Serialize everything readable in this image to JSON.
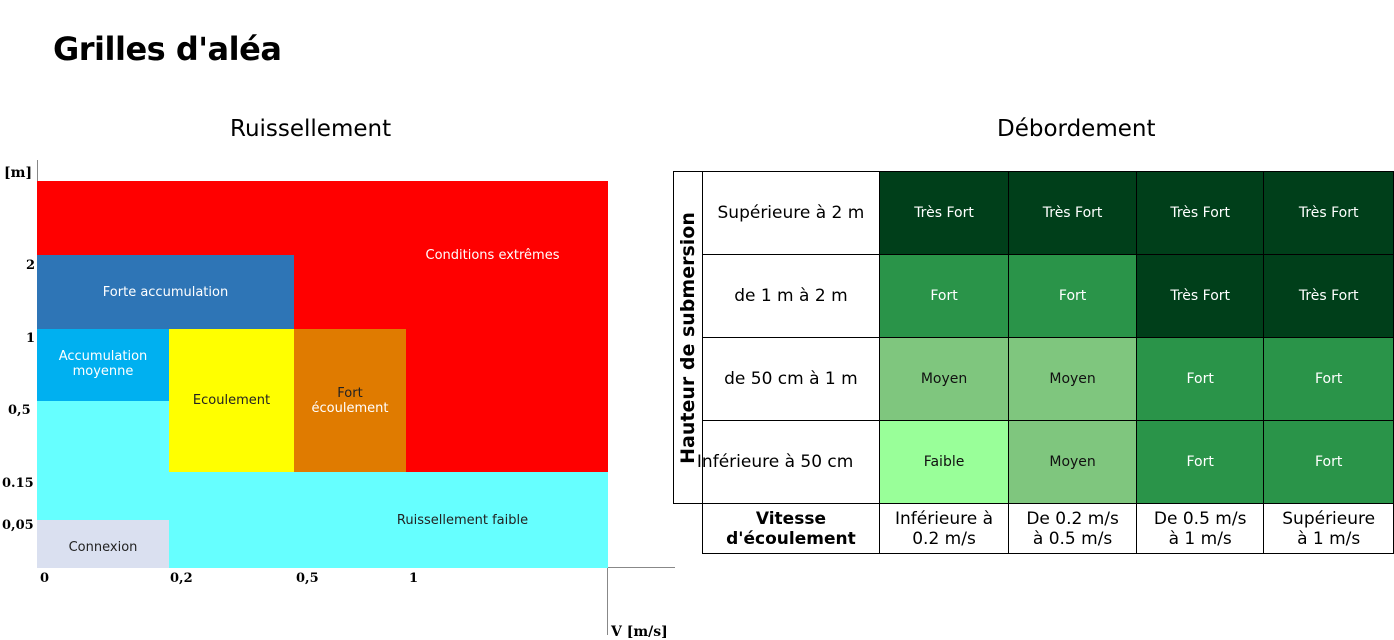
{
  "page": {
    "title": "Grilles d'aléa"
  },
  "ruissellement": {
    "title": "Ruissellement",
    "y_axis_label": "[m]",
    "x_axis_label": "V [m/s]",
    "y_ticks": [
      "2",
      "1",
      "0,5",
      "0.15",
      "0,05"
    ],
    "x_ticks": [
      "0",
      "0,2",
      "0,5",
      "1"
    ],
    "zones": {
      "conditions_extremes": {
        "label": "Conditions extrêmes",
        "color": "#ff0000"
      },
      "forte_accumulation": {
        "label": "Forte accumulation",
        "color": "#2e75b6"
      },
      "accumulation_moyenne": {
        "line1": "Accumulation",
        "line2": "moyenne",
        "color": "#00b0f0"
      },
      "ecoulement": {
        "label": "Ecoulement",
        "color": "#ffff00"
      },
      "fort_ecoulement": {
        "line1": "Fort",
        "line2": "écoulement",
        "color": "#e07b00"
      },
      "ruissellement_faible": {
        "label": "Ruissellement faible",
        "color": "#66ffff"
      },
      "connexion": {
        "label": "Connexion",
        "color": "#dae0f0"
      }
    }
  },
  "debordement": {
    "title": "Débordement",
    "row_axis_label": "Hauteur de submersion",
    "corner_line1": "Vitesse",
    "corner_line2": "d'écoulement",
    "columns": [
      {
        "line1": "Inférieure à",
        "line2": "0.2 m/s"
      },
      {
        "line1": "De 0.2 m/s",
        "line2": "à 0.5 m/s"
      },
      {
        "line1": "De 0.5 m/s",
        "line2": "à 1 m/s"
      },
      {
        "line1": "Supérieure",
        "line2": "à 1 m/s"
      }
    ],
    "rows": [
      {
        "label": "Supérieure à 2 m",
        "cells": [
          "Très Fort",
          "Très Fort",
          "Très Fort",
          "Très Fort"
        ]
      },
      {
        "label": "de 1 m à 2 m",
        "cells": [
          "Fort",
          "Fort",
          "Très Fort",
          "Très Fort"
        ]
      },
      {
        "label": "de 50 cm à 1 m",
        "cells": [
          "Moyen",
          "Moyen",
          "Fort",
          "Fort"
        ]
      },
      {
        "label": "Inférieure à 50 cm",
        "cells": [
          "Faible",
          "Moyen",
          "Fort",
          "Fort"
        ]
      }
    ],
    "level_colors": {
      "Très Fort": "#003f1a",
      "Fort": "#2a9449",
      "Moyen": "#7fc67e",
      "Faible": "#99ff99"
    },
    "level_text_colors": {
      "Très Fort": "#ffffff",
      "Fort": "#ffffff",
      "Moyen": "#111111",
      "Faible": "#111111"
    }
  }
}
